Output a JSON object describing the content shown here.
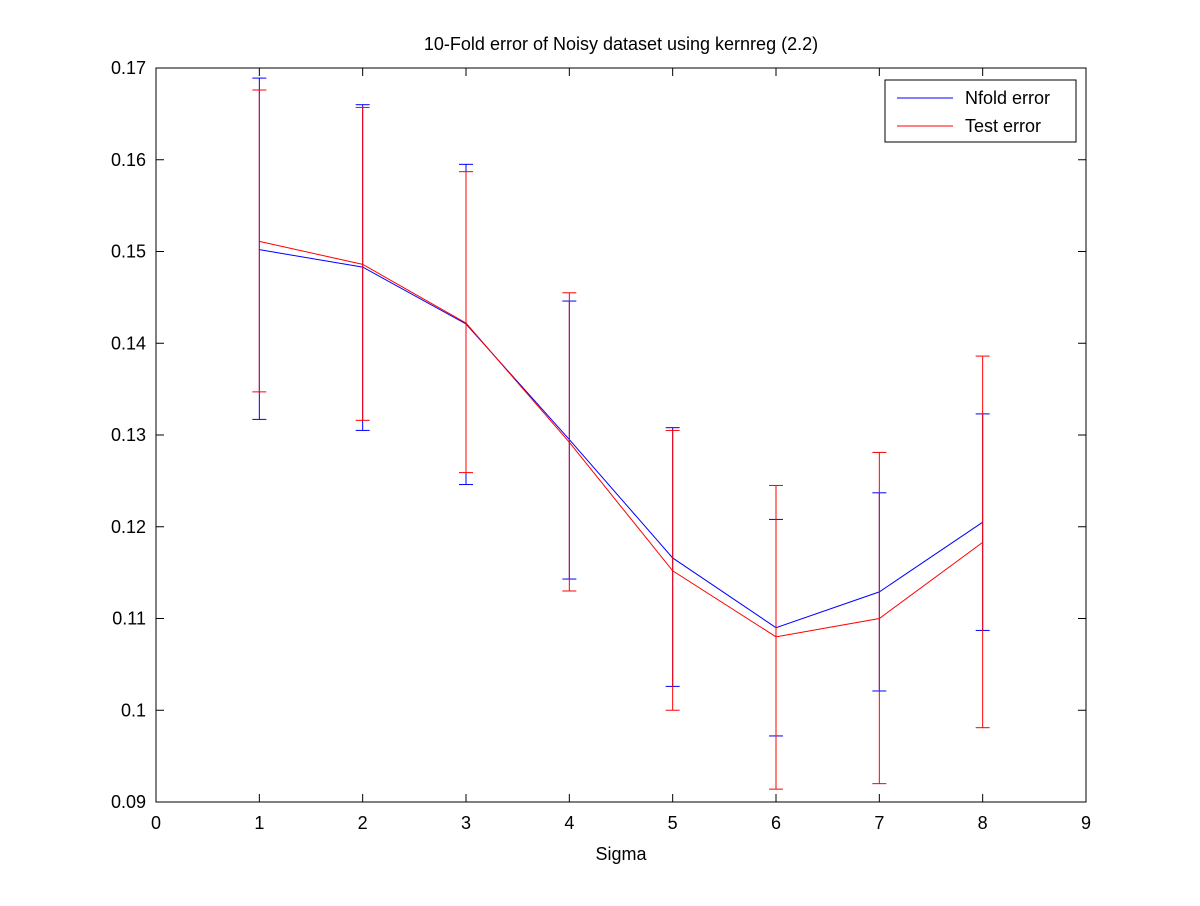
{
  "chart_data": {
    "type": "line",
    "title": "10-Fold error of Noisy dataset using kernreg (2.2)",
    "xlabel": "Sigma",
    "ylabel": "",
    "xlim": [
      0,
      9
    ],
    "ylim": [
      0.09,
      0.17
    ],
    "xticks": [
      0,
      1,
      2,
      3,
      4,
      5,
      6,
      7,
      8,
      9
    ],
    "xtick_labels": [
      "0",
      "1",
      "2",
      "3",
      "4",
      "5",
      "6",
      "7",
      "8",
      "9"
    ],
    "yticks": [
      0.09,
      0.1,
      0.11,
      0.12,
      0.13,
      0.14,
      0.15,
      0.16,
      0.17
    ],
    "ytick_labels": [
      "0.09",
      "0.1",
      "0.11",
      "0.12",
      "0.13",
      "0.14",
      "0.15",
      "0.16",
      "0.17"
    ],
    "grid": false,
    "legend_position": "top-right",
    "x": [
      1,
      2,
      3,
      4,
      5,
      6,
      7,
      8
    ],
    "series": [
      {
        "name": "Nfold error",
        "color": "#0000ff",
        "values": [
          0.1502,
          0.1483,
          0.1421,
          0.1295,
          0.1166,
          0.109,
          0.1129,
          0.1205
        ],
        "error_lower": [
          0.1317,
          0.1305,
          0.1246,
          0.1143,
          0.1026,
          0.0972,
          0.1021,
          0.1087
        ],
        "error_upper": [
          0.1689,
          0.166,
          0.1595,
          0.1446,
          0.1308,
          0.1208,
          0.1237,
          0.1323
        ]
      },
      {
        "name": "Test error",
        "color": "#ff0000",
        "values": [
          0.1511,
          0.1486,
          0.1422,
          0.1292,
          0.1152,
          0.108,
          0.11,
          0.1183
        ],
        "error_lower": [
          0.1347,
          0.1316,
          0.1259,
          0.113,
          0.1,
          0.0914,
          0.092,
          0.0981
        ],
        "error_upper": [
          0.1676,
          0.1657,
          0.1587,
          0.1455,
          0.1305,
          0.1245,
          0.1281,
          0.1386
        ]
      }
    ]
  }
}
